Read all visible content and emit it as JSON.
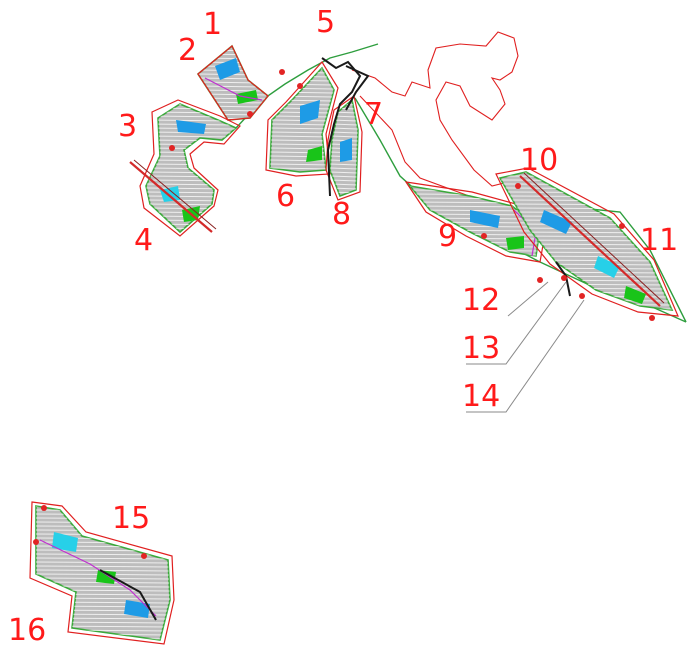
{
  "map": {
    "colors": {
      "parcel_fill": "#bdbdbd",
      "boundary": "#e02020",
      "road": "#2e9e3e",
      "label": "#ff1a1a"
    },
    "plot_labels": [
      "1",
      "2",
      "3",
      "4",
      "5",
      "6",
      "7",
      "8",
      "9",
      "10",
      "11",
      "12",
      "13",
      "14",
      "15",
      "16"
    ]
  }
}
